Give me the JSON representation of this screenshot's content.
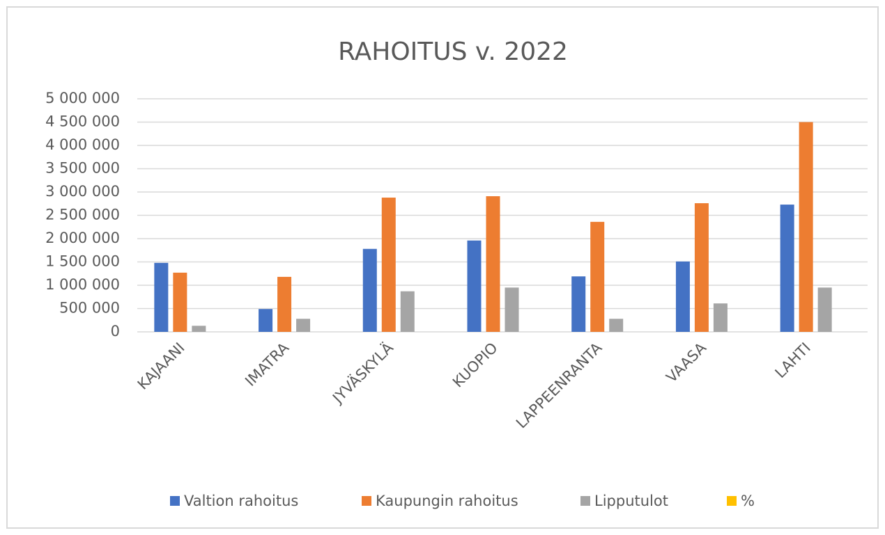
{
  "chart_data": {
    "type": "bar",
    "title": "RAHOITUS v. 2022",
    "categories": [
      "KAJAANI",
      "IMATRA",
      "JYVÄSKYLÄ",
      "KUOPIO",
      "LAPPEENRANTA",
      "VAASA",
      "LAHTI"
    ],
    "series": [
      {
        "name": "Valtion rahoitus",
        "color": "#4472c4",
        "values": [
          1480000,
          490000,
          1780000,
          1960000,
          1190000,
          1510000,
          2730000
        ]
      },
      {
        "name": "Kaupungin rahoitus",
        "color": "#ed7d31",
        "values": [
          1270000,
          1180000,
          2880000,
          2910000,
          2360000,
          2760000,
          4500000
        ]
      },
      {
        "name": "Lipputulot",
        "color": "#a5a5a5",
        "values": [
          130000,
          280000,
          870000,
          950000,
          280000,
          610000,
          950000
        ]
      },
      {
        "name": "%",
        "color": "#ffc000",
        "values": [
          null,
          null,
          null,
          null,
          null,
          null,
          null
        ]
      }
    ],
    "ylim": [
      0,
      5000000
    ],
    "yticks": [
      0,
      {
        "value": 500000,
        "label": "500 000"
      },
      {
        "value": 1000000,
        "label": "1 000 000"
      },
      {
        "value": 1500000,
        "label": "1 500 000"
      },
      {
        "value": 2000000,
        "label": "2 000 000"
      },
      {
        "value": 2500000,
        "label": "2 500 000"
      },
      {
        "value": 3000000,
        "label": "3 000 000"
      },
      {
        "value": 3500000,
        "label": "3 500 000"
      },
      {
        "value": 4000000,
        "label": "4 000 000"
      },
      {
        "value": 4500000,
        "label": "4 500 000"
      },
      {
        "value": 5000000,
        "label": "5 000 000"
      }
    ],
    "grid": true,
    "legend": "bottom"
  }
}
